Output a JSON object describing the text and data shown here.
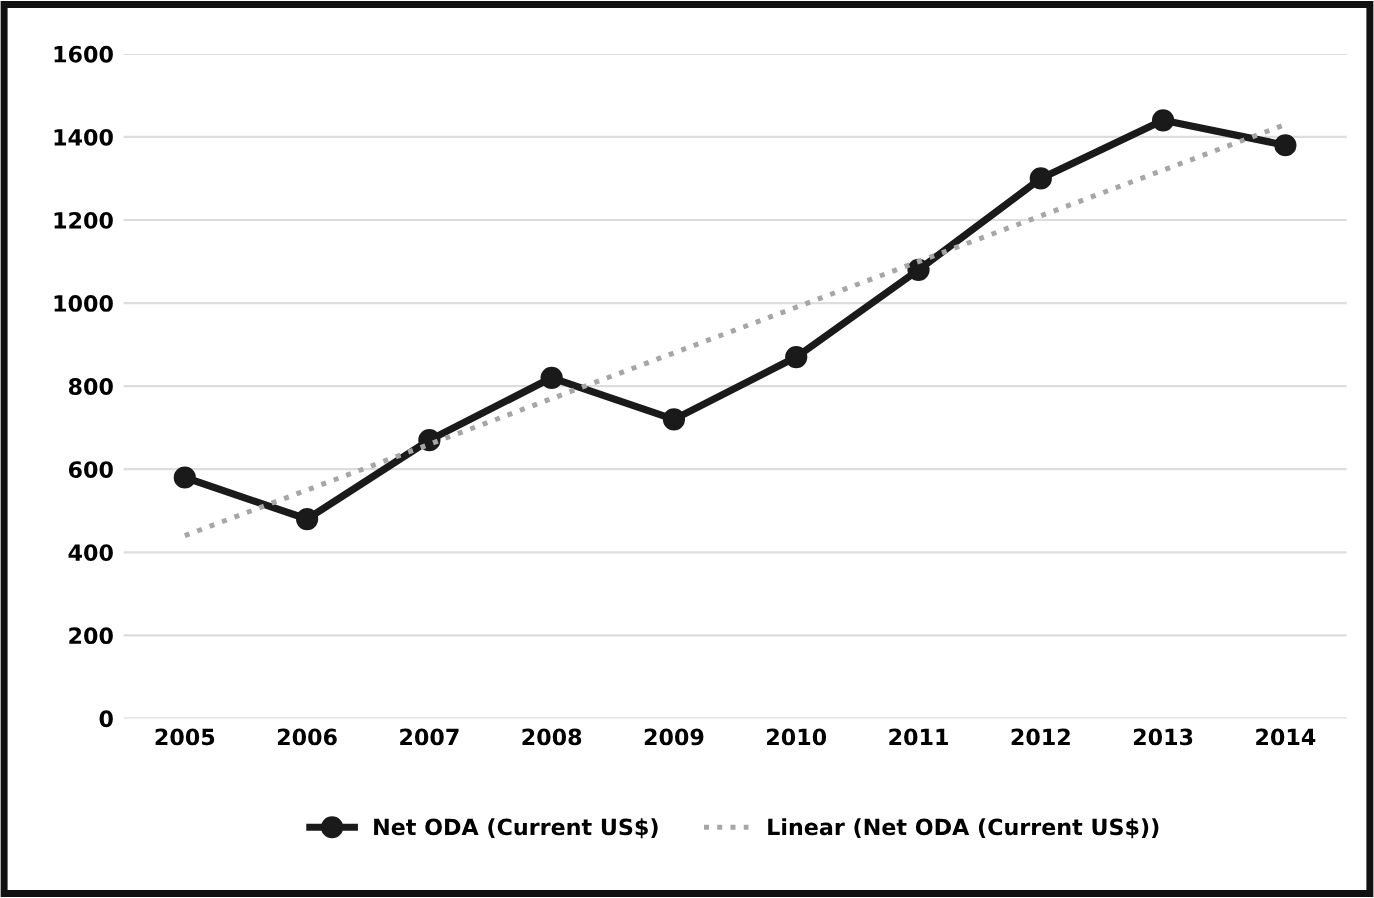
{
  "chart_data": {
    "type": "line",
    "categories": [
      "2005",
      "2006",
      "2007",
      "2008",
      "2009",
      "2010",
      "2011",
      "2012",
      "2013",
      "2014"
    ],
    "series": [
      {
        "name": "Net ODA (Current US$)",
        "color": "#1a1a1a",
        "values": [
          580,
          480,
          670,
          820,
          720,
          870,
          1080,
          1300,
          1440,
          1380
        ],
        "marker": "circle",
        "line_style": "solid"
      },
      {
        "name": "Linear (Net ODA (Current US$))",
        "color": "#a6a6a6",
        "values": [
          440,
          550,
          660,
          770,
          880,
          990,
          1100,
          1210,
          1320,
          1430
        ],
        "marker": "none",
        "line_style": "dotted"
      }
    ],
    "ylim": [
      0,
      1600
    ],
    "yticks": [
      0,
      200,
      400,
      600,
      800,
      1000,
      1200,
      1400,
      1600
    ],
    "grid": "y",
    "legend": "bottom"
  }
}
